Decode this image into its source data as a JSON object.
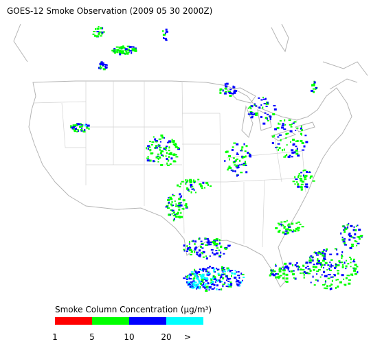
{
  "title": "GOES-12 Smoke Observation (2009 05 30  2000Z)",
  "legend": {
    "title": "Smoke Column Concentration (μg/m³)",
    "colors": [
      "#ff0000",
      "#00ff00",
      "#0000ff",
      "#00ffff"
    ],
    "ticks": [
      1,
      5,
      10,
      20,
      ">"
    ]
  }
}
